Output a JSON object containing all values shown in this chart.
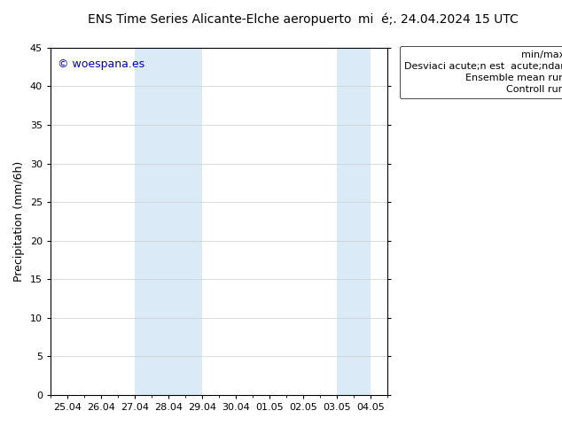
{
  "title_left": "ENS Time Series Alicante-Elche aeropuerto",
  "title_right": "mi  acute;. 24.04.2024 15 UTC",
  "ylabel": "Precipitation (mm/6h)",
  "ylim": [
    0,
    45
  ],
  "yticks": [
    0,
    5,
    10,
    15,
    20,
    25,
    30,
    35,
    40,
    45
  ],
  "xtick_labels": [
    "25.04",
    "26.04",
    "27.04",
    "28.04",
    "29.04",
    "30.04",
    "01.05",
    "02.05",
    "03.05",
    "04.05"
  ],
  "xtick_positions": [
    0,
    1,
    2,
    3,
    4,
    5,
    6,
    7,
    8,
    9
  ],
  "xlim": [
    -0.5,
    9.5
  ],
  "blue_bands": [
    {
      "xmin": 2.0,
      "xmax": 4.0
    },
    {
      "xmin": 8.0,
      "xmax": 9.0
    }
  ],
  "blue_band_color": "#daeaf6",
  "watermark_text": "© woespana.es",
  "watermark_color": "#0000bb",
  "background_color": "#ffffff",
  "grid_color": "#cccccc",
  "tick_color": "#000000",
  "font_size_title": 10,
  "font_size_axis": 9,
  "font_size_tick": 8,
  "font_size_legend": 8,
  "font_size_watermark": 9,
  "legend_min_max_color": "#999999",
  "legend_std_color": "#cccccc",
  "legend_mean_color": "#dd0000",
  "legend_ctrl_color": "#007700"
}
